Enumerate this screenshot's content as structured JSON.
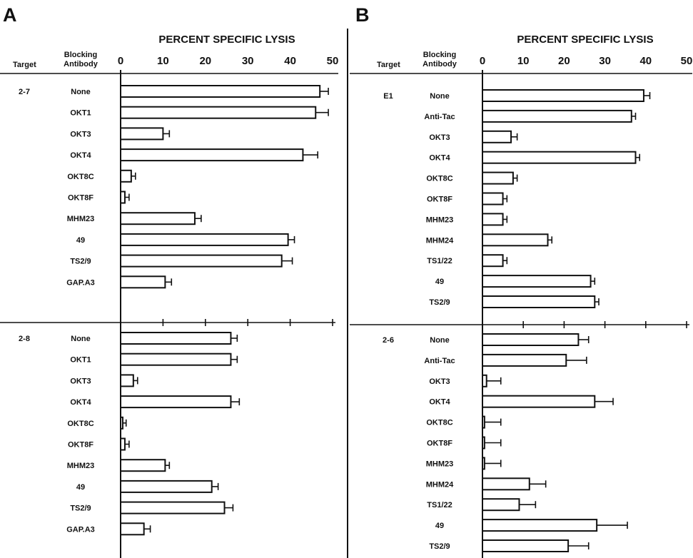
{
  "chart_data": [
    {
      "type": "bar",
      "panel": "A",
      "xlabel": "PERCENT SPECIFIC LYSIS",
      "xlim": [
        0,
        50
      ],
      "xticks": [
        "0",
        "10",
        "20",
        "30",
        "40",
        "50"
      ],
      "column_headers": [
        "Target",
        "Blocking Antibody"
      ],
      "groups": [
        {
          "target": "2-7",
          "bars": [
            {
              "label": "None",
              "value": 47.0,
              "error": 2.0
            },
            {
              "label": "OKT1",
              "value": 46.0,
              "error": 3.0
            },
            {
              "label": "OKT3",
              "value": 10.0,
              "error": 1.5
            },
            {
              "label": "OKT4",
              "value": 43.0,
              "error": 3.5
            },
            {
              "label": "OKT8C",
              "value": 2.5,
              "error": 1.0
            },
            {
              "label": "OKT8F",
              "value": 1.0,
              "error": 1.0
            },
            {
              "label": "MHM23",
              "value": 17.5,
              "error": 1.5
            },
            {
              "label": "49",
              "value": 39.5,
              "error": 1.5
            },
            {
              "label": "TS2/9",
              "value": 38.0,
              "error": 2.5
            },
            {
              "label": "GAP.A3",
              "value": 10.5,
              "error": 1.5
            }
          ]
        },
        {
          "target": "2-8",
          "bars": [
            {
              "label": "None",
              "value": 26.0,
              "error": 1.5
            },
            {
              "label": "OKT1",
              "value": 26.0,
              "error": 1.5
            },
            {
              "label": "OKT3",
              "value": 3.0,
              "error": 1.0
            },
            {
              "label": "OKT4",
              "value": 26.0,
              "error": 2.0
            },
            {
              "label": "OKT8C",
              "value": 0.5,
              "error": 0.8
            },
            {
              "label": "OKT8F",
              "value": 1.0,
              "error": 1.0
            },
            {
              "label": "MHM23",
              "value": 10.5,
              "error": 1.0
            },
            {
              "label": "49",
              "value": 21.5,
              "error": 1.5
            },
            {
              "label": "TS2/9",
              "value": 24.5,
              "error": 2.0
            },
            {
              "label": "GAP.A3",
              "value": 5.5,
              "error": 1.5
            }
          ]
        }
      ]
    },
    {
      "type": "bar",
      "panel": "B",
      "xlabel": "PERCENT SPECIFIC LYSIS",
      "xlim": [
        0,
        50
      ],
      "xticks": [
        "0",
        "10",
        "20",
        "30",
        "40",
        "50"
      ],
      "column_headers": [
        "Target",
        "Blocking Antibody"
      ],
      "groups": [
        {
          "target": "E1",
          "bars": [
            {
              "label": "None",
              "value": 39.5,
              "error": 1.5
            },
            {
              "label": "Anti-Tac",
              "value": 36.5,
              "error": 1.0
            },
            {
              "label": "OKT3",
              "value": 7.0,
              "error": 1.5
            },
            {
              "label": "OKT4",
              "value": 37.5,
              "error": 1.0
            },
            {
              "label": "OKT8C",
              "value": 7.5,
              "error": 1.0
            },
            {
              "label": "OKT8F",
              "value": 5.0,
              "error": 1.0
            },
            {
              "label": "MHM23",
              "value": 5.0,
              "error": 1.0
            },
            {
              "label": "MHM24",
              "value": 16.0,
              "error": 1.0
            },
            {
              "label": "TS1/22",
              "value": 5.0,
              "error": 1.0
            },
            {
              "label": "49",
              "value": 26.5,
              "error": 1.0
            },
            {
              "label": "TS2/9",
              "value": 27.5,
              "error": 1.0
            }
          ]
        },
        {
          "target": "2-6",
          "bars": [
            {
              "label": "None",
              "value": 23.5,
              "error": 2.5
            },
            {
              "label": "Anti-Tac",
              "value": 20.5,
              "error": 5.0
            },
            {
              "label": "OKT3",
              "value": 1.0,
              "error": 3.5
            },
            {
              "label": "OKT4",
              "value": 27.5,
              "error": 4.5
            },
            {
              "label": "OKT8C",
              "value": 0.5,
              "error": 4.0
            },
            {
              "label": "OKT8F",
              "value": 0.5,
              "error": 4.0
            },
            {
              "label": "MHM23",
              "value": 0.5,
              "error": 4.0
            },
            {
              "label": "MHM24",
              "value": 11.5,
              "error": 4.0
            },
            {
              "label": "TS1/22",
              "value": 9.0,
              "error": 4.0
            },
            {
              "label": "49",
              "value": 28.0,
              "error": 7.5
            },
            {
              "label": "TS2/9",
              "value": 21.0,
              "error": 5.0
            }
          ]
        }
      ]
    }
  ]
}
